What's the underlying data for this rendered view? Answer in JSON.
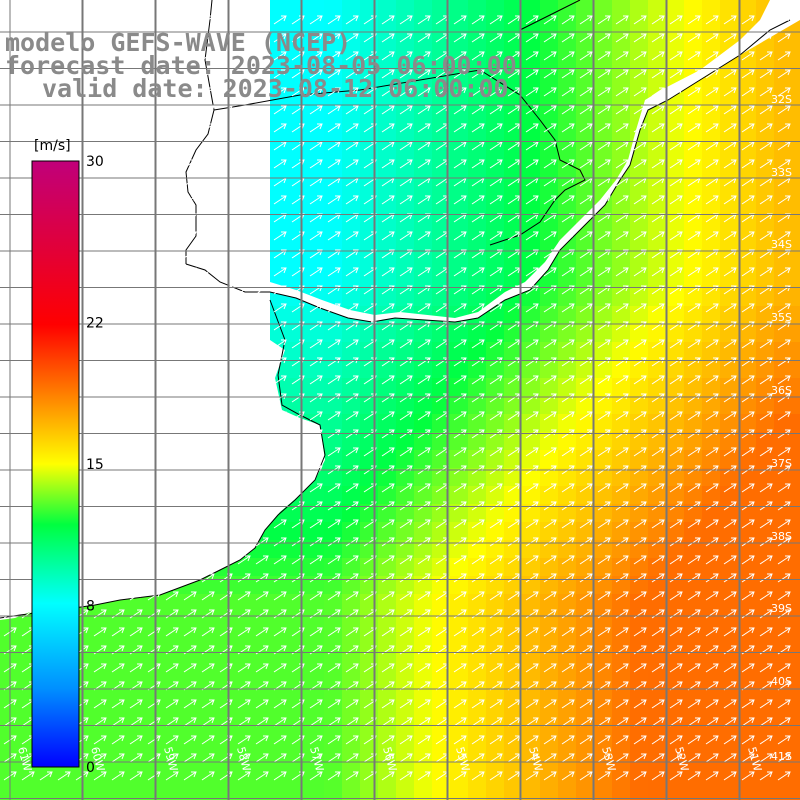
{
  "title": {
    "line1": "modelo GEFS-WAVE (NCEP)",
    "line2": "forecast date: 2023-08-05 06:00:00",
    "line3": "valid date: 2023-08-12 06:00:00"
  },
  "colorbar": {
    "unit": "[m/s]",
    "ticks": [
      "30",
      "22",
      "15",
      "8",
      "0"
    ],
    "tick_values": [
      30,
      22,
      15,
      8,
      0
    ],
    "range": [
      0,
      30
    ]
  },
  "grid": {
    "lat_labels": [
      "32S",
      "33S",
      "34S",
      "35S",
      "36S",
      "37S",
      "38S",
      "39S",
      "40S",
      "41S"
    ],
    "lat_values": [
      32,
      33,
      34,
      35,
      36,
      37,
      38,
      39,
      40,
      41
    ],
    "lon_labels": [
      "61W",
      "60W",
      "59W",
      "58W",
      "57W",
      "56W",
      "55W",
      "54W",
      "53W",
      "52W",
      "51W"
    ],
    "lon_values": [
      61,
      60,
      59,
      58,
      57,
      56,
      55,
      54,
      53,
      52,
      51
    ]
  },
  "colors": {
    "land": "#ffffff",
    "coastline": "#000000",
    "gridline": "#777777",
    "arrows": "#ffffff",
    "title_text": "#8a8a8a"
  },
  "wind_direction": "toward northeast",
  "wind_speed_m_s": {
    "nearshore": 8,
    "offshore_southeast": 19
  }
}
